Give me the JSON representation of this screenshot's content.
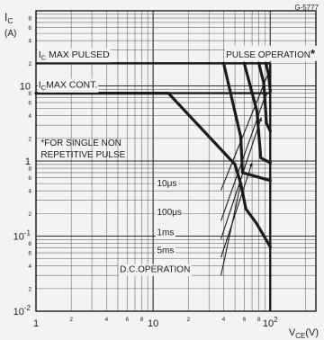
{
  "chart_data": {
    "type": "line",
    "figure_code": "G-5777",
    "xscale": "log",
    "yscale": "log",
    "xlim": [
      1,
      100
    ],
    "ylim": [
      0.01,
      100
    ],
    "grid": true,
    "ylabel": "IC (A)",
    "ylabel_main": "I",
    "ylabel_sub": "C",
    "ylabel_unit": "(A)",
    "xlabel_main": "V",
    "xlabel_sub": "CE",
    "xlabel_unit": "(V)",
    "x_ticks": [
      {
        "value": 1,
        "label": "1",
        "mantissa": "1",
        "exponent": ""
      },
      {
        "value": 10,
        "label": "10",
        "mantissa": "10",
        "exponent": ""
      },
      {
        "value": 100,
        "label": "10^2",
        "mantissa": "10",
        "exponent": "2"
      }
    ],
    "x_minor_ticks": [
      {
        "value": 2,
        "label": "2"
      },
      {
        "value": 4,
        "label": "4"
      },
      {
        "value": 6,
        "label": "6"
      },
      {
        "value": 8,
        "label": "8"
      },
      {
        "value": 20,
        "label": "2"
      },
      {
        "value": 40,
        "label": "4"
      },
      {
        "value": 60,
        "label": "6"
      },
      {
        "value": 80,
        "label": "8"
      },
      {
        "value": 200,
        "label": "2"
      },
      {
        "value": 400,
        "label": "4"
      },
      {
        "value": 600,
        "label": "6"
      },
      {
        "value": 800,
        "label": "8"
      }
    ],
    "y_ticks": [
      {
        "value": 0.01,
        "label": "10^-2",
        "mantissa": "10",
        "exponent": "-2"
      },
      {
        "value": 0.1,
        "label": "10^-1",
        "mantissa": "10",
        "exponent": "-1"
      },
      {
        "value": 1,
        "label": "1",
        "mantissa": "1",
        "exponent": ""
      },
      {
        "value": 10,
        "label": "10",
        "mantissa": "10",
        "exponent": ""
      }
    ],
    "y_minor_ticks": [
      {
        "value": 0.02,
        "label": "2"
      },
      {
        "value": 0.04,
        "label": "4"
      },
      {
        "value": 0.06,
        "label": "6"
      },
      {
        "value": 0.08,
        "label": "8"
      },
      {
        "value": 0.2,
        "label": "2"
      },
      {
        "value": 0.4,
        "label": "4"
      },
      {
        "value": 0.6,
        "label": "6"
      },
      {
        "value": 0.8,
        "label": "8"
      },
      {
        "value": 2,
        "label": "2"
      },
      {
        "value": 4,
        "label": "4"
      },
      {
        "value": 6,
        "label": "6"
      },
      {
        "value": 8,
        "label": "8"
      },
      {
        "value": 20,
        "label": "2"
      },
      {
        "value": 40,
        "label": "4"
      },
      {
        "value": 60,
        "label": "6"
      },
      {
        "value": 80,
        "label": "8"
      }
    ],
    "annotations": [
      {
        "id": "ic-max-pulsed",
        "main": "I",
        "sub": "C",
        "rest": " MAX PULSED",
        "text": "IC MAX PULSED",
        "x": 1.05,
        "y": 24
      },
      {
        "id": "ic-max-cont",
        "main": "I",
        "sub": "C",
        "rest": "MAX CONT.",
        "text": "IC MAX CONT.",
        "x": 1.05,
        "y": 9.5
      },
      {
        "id": "pulse-operation",
        "text": "PULSE OPERATION",
        "suffix": "*",
        "x": 42,
        "y": 24
      },
      {
        "id": "footnote",
        "lines": [
          "*FOR SINGLE NON",
          "REPETITIVE PULSE"
        ],
        "x": 1.1,
        "y": 1.6
      },
      {
        "id": "label-10us",
        "text": "10μs",
        "x": 10.8,
        "y": 0.46
      },
      {
        "id": "label-100us",
        "text": "100μs",
        "x": 10.8,
        "y": 0.19
      },
      {
        "id": "label-1ms",
        "text": "1ms",
        "x": 10.8,
        "y": 0.103
      },
      {
        "id": "label-5ms",
        "text": "5ms",
        "x": 10.8,
        "y": 0.059
      },
      {
        "id": "label-dc",
        "text": "D.C.OPERATION",
        "x": 5.2,
        "y": 0.033
      }
    ],
    "limit_lines": [
      {
        "name": "ic-max-pulsed-limit",
        "x": [
          1,
          100
        ],
        "y": [
          20,
          20
        ]
      },
      {
        "name": "ic-max-cont-limit",
        "x": [
          1,
          100
        ],
        "y": [
          8,
          8
        ]
      },
      {
        "name": "vce-max",
        "x": [
          100,
          100
        ],
        "y": [
          0.01,
          20
        ]
      }
    ],
    "series": [
      {
        "name": "",
        "curve": "D.C.",
        "x": [
          1,
          13.5,
          50,
          56,
          62,
          76,
          100
        ],
        "y": [
          8,
          8,
          0.9,
          0.5,
          0.23,
          0.15,
          0.072
        ]
      },
      {
        "name": "",
        "curve": "5ms",
        "x": [
          40,
          56,
          58,
          100
        ],
        "y": [
          20,
          2.1,
          0.7,
          0.55
        ]
      },
      {
        "name": "",
        "curve": "1ms",
        "x": [
          60,
          77,
          83,
          100
        ],
        "y": [
          20,
          4.6,
          1.1,
          0.95
        ]
      },
      {
        "name": "",
        "curve": "100μs",
        "x": [
          80,
          88,
          93,
          100
        ],
        "y": [
          20,
          11,
          3.2,
          2.5
        ]
      },
      {
        "name": "",
        "curve": "10μs",
        "x": [
          92,
          97,
          100
        ],
        "y": [
          20,
          14,
          8.5
        ]
      }
    ],
    "leader_lines": [
      {
        "for": "10μs",
        "from": [
          38,
          0.41
        ],
        "to": [
          100,
          17
        ]
      },
      {
        "for": "100μs",
        "from": [
          38,
          0.16
        ],
        "to": [
          93,
          8.2
        ]
      },
      {
        "for": "1ms",
        "from": [
          38,
          0.092
        ],
        "to": [
          84,
          3.8
        ]
      },
      {
        "for": "5ms",
        "from": [
          38,
          0.052
        ],
        "to": [
          70,
          0.95
        ]
      },
      {
        "for": "D.C.",
        "from": [
          38,
          0.03
        ],
        "to": [
          56,
          0.5
        ]
      }
    ]
  }
}
